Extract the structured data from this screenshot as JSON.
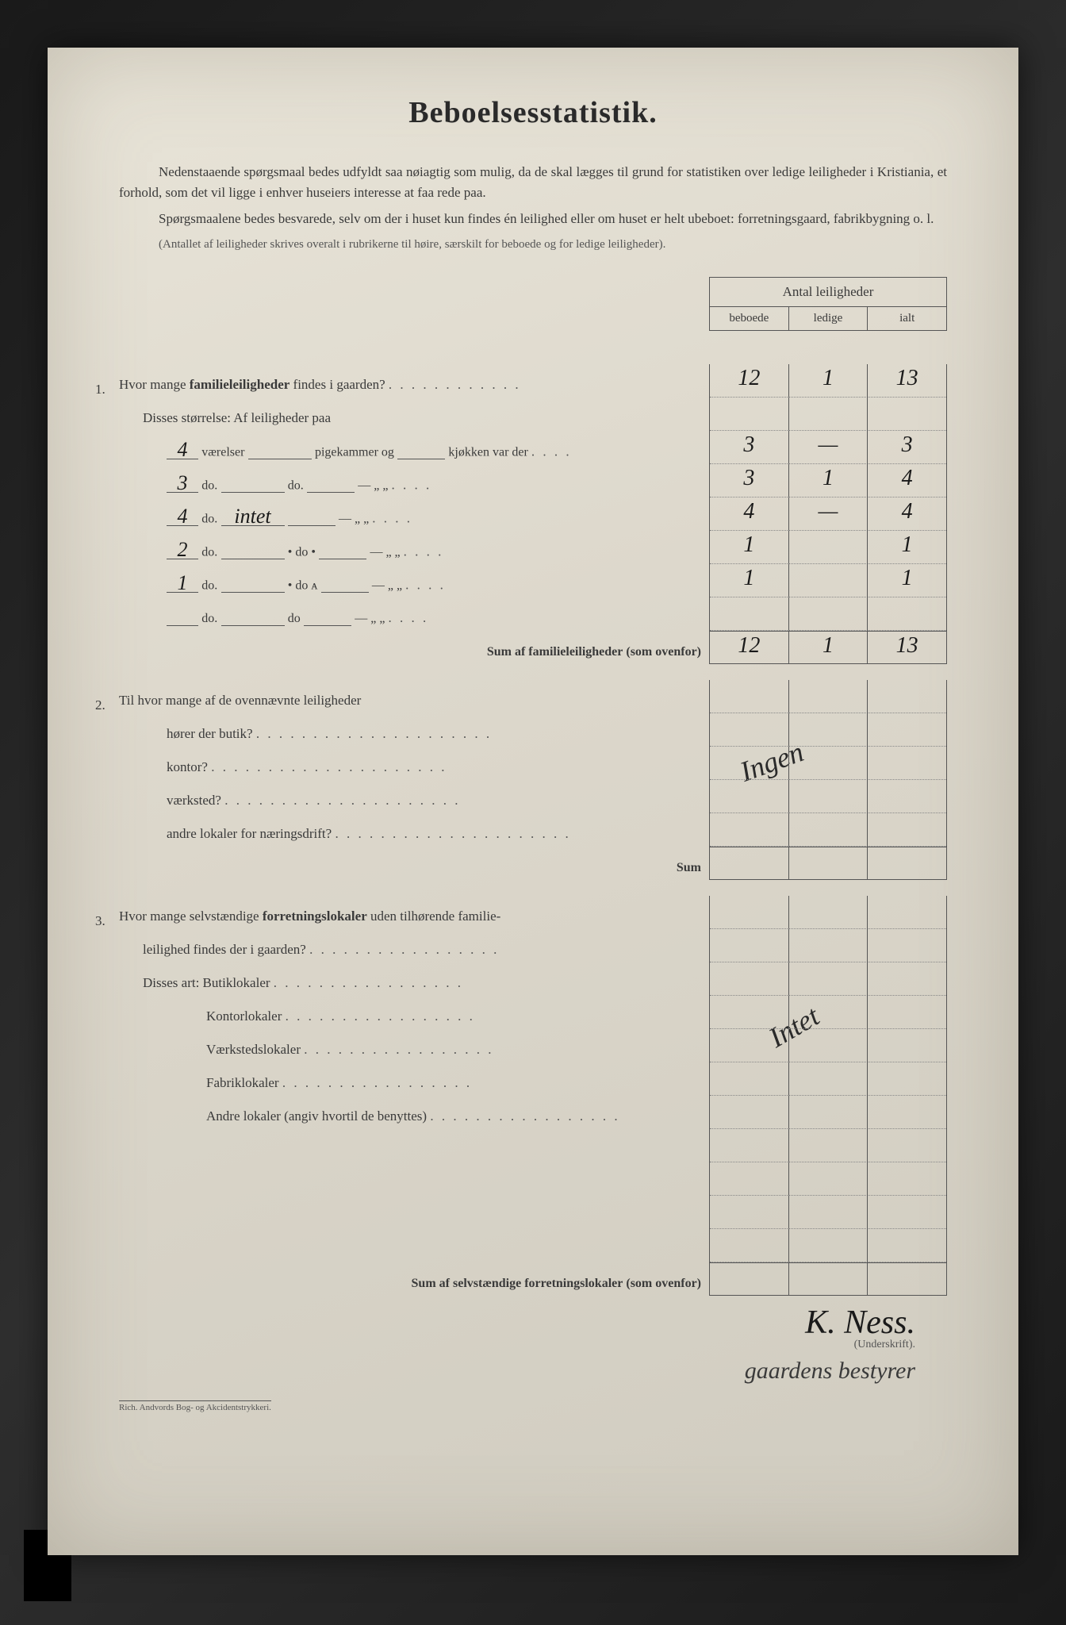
{
  "title": "Beboelsesstatistik.",
  "intro": {
    "p1a": "Nedenstaaende spørgsmaal bedes udfyldt saa nøiagtig som mulig, da de skal lægges til grund for statistiken over ledige leiligheder i Kristiania, et forhold, som det vil ligge i enhver huseiers interesse at faa rede paa.",
    "p2": "Spørgsmaalene bedes besvarede, selv om der i huset kun findes én leilighed eller om huset er helt ubeboet: forretningsgaard, fabrikbygning o. l.",
    "p3": "(Antallet af leiligheder skrives overalt i rubrikerne til høire, særskilt for beboede og for ledige leiligheder)."
  },
  "table_header": {
    "title": "Antal leiligheder",
    "c1": "beboede",
    "c2": "ledige",
    "c3": "ialt"
  },
  "q1": {
    "num": "1.",
    "text": "Hvor mange familieleiligheder findes i gaarden?",
    "sub": "Disses størrelse: Af leiligheder paa",
    "rows": [
      {
        "v": "4",
        "label": "værelser",
        "mid": "pigekammer og",
        "end": "kjøkken var der",
        "b": "3",
        "l": "—",
        "i": "3"
      },
      {
        "v": "3",
        "label": "do.",
        "mid": "do.",
        "end": "—    „    „",
        "b": "3",
        "l": "1",
        "i": "4"
      },
      {
        "v": "4",
        "label": "do.",
        "mid": "intet",
        "end": "—    „    „",
        "b": "4",
        "l": "—",
        "i": "4"
      },
      {
        "v": "2",
        "label": "do.",
        "mid": "• do  •",
        "end": "—    „    „",
        "b": "1",
        "l": "",
        "i": "1"
      },
      {
        "v": "1",
        "label": "do.",
        "mid": "• do  ᴀ",
        "end": "—    „    „",
        "b": "1",
        "l": "",
        "i": "1"
      },
      {
        "v": "",
        "label": "do.",
        "mid": "do",
        "end": "—    „    „",
        "b": "",
        "l": "",
        "i": ""
      }
    ],
    "sum_label": "Sum af familieleiligheder (som ovenfor)",
    "sum": {
      "b": "12",
      "l": "1",
      "i": "13"
    },
    "top": {
      "b": "12",
      "l": "1",
      "i": "13"
    }
  },
  "q2": {
    "num": "2.",
    "text": "Til hvor mange af de ovennævnte leiligheder",
    "rows": [
      "hører der butik?",
      "kontor?",
      "værksted?",
      "andre lokaler for næringsdrift?"
    ],
    "sum_label": "Sum",
    "handwritten": "Ingen"
  },
  "q3": {
    "num": "3.",
    "text": "Hvor mange selvstændige forretningslokaler uden tilhørende familie-leilighed findes der i gaarden?",
    "sub": "Disses art:",
    "rows": [
      "Butiklokaler",
      "Kontorlokaler",
      "Værkstedslokaler",
      "Fabriklokaler",
      "Andre lokaler (angiv hvortil de benyttes)"
    ],
    "sum_label": "Sum af selvstændige forretningslokaler (som ovenfor)",
    "handwritten": "Intet"
  },
  "signature": {
    "name": "K. Ness.",
    "label": "(Underskrift).",
    "note": "gaardens bestyrer"
  },
  "footer": "Rich. Andvords Bog- og Akcidentstrykkeri."
}
